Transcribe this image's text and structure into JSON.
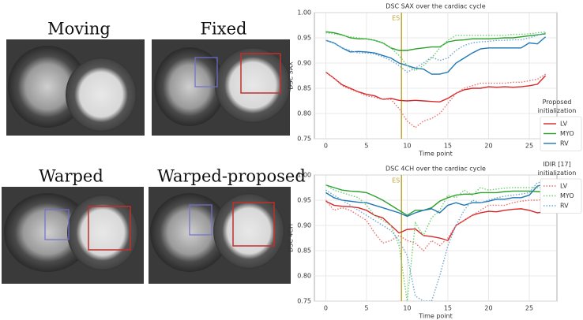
{
  "images": [
    {
      "label": "Moving"
    },
    {
      "label": "Fixed"
    },
    {
      "label": "Warped"
    },
    {
      "label": "Warped-proposed"
    }
  ],
  "legend_groups": [
    {
      "title": "Proposed initialization",
      "dash": "solid"
    },
    {
      "title": "IDIR [17] initialization",
      "dash": "dotted"
    }
  ],
  "chart_data": [
    {
      "type": "line",
      "title": "DSC SAX over the cardiac cycle",
      "x_label": "Time point",
      "y_label": "DSC SAX",
      "annotation": {
        "text": "ES",
        "x": 9.3,
        "color": "#bfa637"
      },
      "x": [
        0,
        1,
        2,
        3,
        4,
        5,
        6,
        7,
        8,
        9,
        10,
        11,
        12,
        13,
        14,
        15,
        16,
        17,
        18,
        19,
        20,
        21,
        22,
        23,
        24,
        25,
        26,
        27
      ],
      "xlim": [
        -1.4,
        28.4
      ],
      "ylim": [
        0.75,
        1.0
      ],
      "xticks": [
        0,
        5,
        10,
        15,
        20,
        25
      ],
      "yticks": [
        0.75,
        {
          "value": 0.8,
          "label": "0.80"
        },
        0.85,
        {
          "value": 0.9,
          "label": "0.90"
        },
        0.95,
        {
          "value": 1.0,
          "label": "1.00"
        }
      ],
      "grid": true,
      "series": [
        {
          "name": "LV",
          "color": "#d62728",
          "dash": "solid",
          "values": [
            0.882,
            0.87,
            0.857,
            0.85,
            0.843,
            0.838,
            0.835,
            0.828,
            0.83,
            0.826,
            0.825,
            0.826,
            0.825,
            0.824,
            0.823,
            0.83,
            0.84,
            0.847,
            0.85,
            0.85,
            0.853,
            0.852,
            0.853,
            0.852,
            0.853,
            0.855,
            0.858,
            0.875
          ]
        },
        {
          "name": "MYO",
          "color": "#2ca02c",
          "dash": "solid",
          "values": [
            0.962,
            0.96,
            0.956,
            0.95,
            0.948,
            0.948,
            0.945,
            0.94,
            0.93,
            0.925,
            0.925,
            0.928,
            0.93,
            0.932,
            0.932,
            0.942,
            0.945,
            0.946,
            0.948,
            0.948,
            0.948,
            0.949,
            0.95,
            0.95,
            0.952,
            0.954,
            0.956,
            0.958
          ]
        },
        {
          "name": "RV",
          "color": "#1f77b4",
          "dash": "solid",
          "values": [
            0.945,
            0.94,
            0.93,
            0.922,
            0.923,
            0.922,
            0.92,
            0.915,
            0.91,
            0.9,
            0.895,
            0.89,
            0.888,
            0.878,
            0.878,
            0.882,
            0.9,
            0.91,
            0.92,
            0.928,
            0.93,
            0.93,
            0.93,
            0.93,
            0.93,
            0.94,
            0.938,
            0.952
          ]
        },
        {
          "name": "LV",
          "color": "#e8706f",
          "dash": "dotted",
          "values": [
            0.882,
            0.87,
            0.855,
            0.848,
            0.842,
            0.835,
            0.832,
            0.828,
            0.828,
            0.81,
            0.785,
            0.772,
            0.785,
            0.79,
            0.8,
            0.82,
            0.84,
            0.85,
            0.855,
            0.86,
            0.86,
            0.86,
            0.86,
            0.862,
            0.862,
            0.865,
            0.868,
            0.878
          ]
        },
        {
          "name": "MYO",
          "color": "#6fcf6f",
          "dash": "dotted",
          "values": [
            0.96,
            0.958,
            0.955,
            0.952,
            0.95,
            0.948,
            0.945,
            0.94,
            0.93,
            0.915,
            0.895,
            0.885,
            0.895,
            0.91,
            0.93,
            0.945,
            0.955,
            0.955,
            0.955,
            0.955,
            0.955,
            0.955,
            0.955,
            0.957,
            0.957,
            0.958,
            0.96,
            0.962
          ]
        },
        {
          "name": "RV",
          "color": "#6fa8d6",
          "dash": "dotted",
          "values": [
            0.945,
            0.94,
            0.93,
            0.925,
            0.92,
            0.92,
            0.918,
            0.912,
            0.905,
            0.895,
            0.882,
            0.89,
            0.9,
            0.912,
            0.905,
            0.91,
            0.925,
            0.935,
            0.94,
            0.942,
            0.943,
            0.945,
            0.945,
            0.946,
            0.946,
            0.95,
            0.955,
            0.96
          ]
        }
      ]
    },
    {
      "type": "line",
      "title": "DSC 4CH over the cardiac cycle",
      "x_label": "Time point",
      "y_label": "DSC 4CH",
      "annotation": {
        "text": "ES",
        "x": 9.3,
        "color": "#bfa637"
      },
      "x": [
        0,
        1,
        2,
        3,
        4,
        5,
        6,
        7,
        8,
        9,
        10,
        11,
        12,
        13,
        14,
        15,
        16,
        17,
        18,
        19,
        20,
        21,
        22,
        23,
        24,
        25,
        26,
        27
      ],
      "xlim": [
        -1.4,
        28.4
      ],
      "ylim": [
        0.75,
        1.0
      ],
      "xticks": [
        0,
        5,
        10,
        15,
        20,
        25
      ],
      "yticks": [
        0.75,
        {
          "value": 0.8,
          "label": "0.80"
        },
        0.85,
        {
          "value": 0.9,
          "label": "0.90"
        },
        0.95,
        {
          "value": 1.0,
          "label": "1.00"
        }
      ],
      "grid": true,
      "series": [
        {
          "name": "LV",
          "color": "#d62728",
          "dash": "solid",
          "values": [
            0.948,
            0.94,
            0.938,
            0.937,
            0.935,
            0.93,
            0.92,
            0.915,
            0.9,
            0.885,
            0.892,
            0.893,
            0.88,
            0.878,
            0.875,
            0.87,
            0.9,
            0.91,
            0.92,
            0.925,
            0.928,
            0.927,
            0.93,
            0.932,
            0.933,
            0.93,
            0.925,
            0.927
          ]
        },
        {
          "name": "MYO",
          "color": "#2ca02c",
          "dash": "solid",
          "values": [
            0.98,
            0.975,
            0.97,
            0.968,
            0.967,
            0.965,
            0.958,
            0.95,
            0.94,
            0.93,
            0.92,
            0.93,
            0.93,
            0.935,
            0.948,
            0.955,
            0.96,
            0.962,
            0.962,
            0.965,
            0.965,
            0.965,
            0.967,
            0.968,
            0.968,
            0.968,
            0.967,
            0.966
          ]
        },
        {
          "name": "RV",
          "color": "#1f77b4",
          "dash": "solid",
          "values": [
            0.965,
            0.955,
            0.95,
            0.948,
            0.946,
            0.945,
            0.94,
            0.935,
            0.93,
            0.925,
            0.918,
            0.925,
            0.93,
            0.933,
            0.925,
            0.94,
            0.945,
            0.94,
            0.945,
            0.945,
            0.948,
            0.952,
            0.952,
            0.955,
            0.955,
            0.96,
            0.978,
            0.982
          ]
        },
        {
          "name": "LV",
          "color": "#e8706f",
          "dash": "dotted",
          "values": [
            0.95,
            0.93,
            0.935,
            0.93,
            0.92,
            0.91,
            0.885,
            0.865,
            0.87,
            0.88,
            0.87,
            0.865,
            0.85,
            0.87,
            0.86,
            0.875,
            0.9,
            0.91,
            0.92,
            0.93,
            0.94,
            0.94,
            0.94,
            0.945,
            0.948,
            0.95,
            0.95,
            0.952
          ]
        },
        {
          "name": "MYO",
          "color": "#6fcf6f",
          "dash": "dotted",
          "values": [
            0.98,
            0.97,
            0.965,
            0.96,
            0.955,
            0.94,
            0.92,
            0.91,
            0.9,
            0.86,
            0.75,
            0.905,
            0.88,
            0.915,
            0.93,
            0.96,
            0.955,
            0.97,
            0.96,
            0.975,
            0.97,
            0.972,
            0.974,
            0.975,
            0.975,
            0.975,
            0.975,
            0.975
          ]
        },
        {
          "name": "RV",
          "color": "#6fa8d6",
          "dash": "dotted",
          "values": [
            0.97,
            0.96,
            0.95,
            0.94,
            0.93,
            0.92,
            0.91,
            0.9,
            0.89,
            0.87,
            0.84,
            0.76,
            0.75,
            0.75,
            0.8,
            0.86,
            0.9,
            0.93,
            0.95,
            0.945,
            0.95,
            0.955,
            0.958,
            0.96,
            0.962,
            0.965,
            0.985,
            0.985
          ]
        }
      ]
    }
  ]
}
